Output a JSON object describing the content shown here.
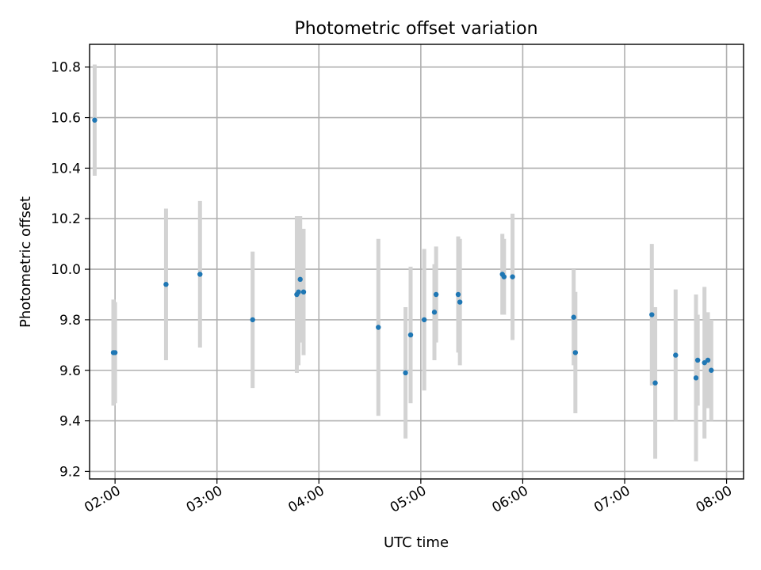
{
  "chart_data": {
    "type": "scatter",
    "title": "Photometric offset variation",
    "xlabel": "UTC time",
    "ylabel": "Photometric offset",
    "xlim": [
      "01:45",
      "08:10"
    ],
    "ylim": [
      9.17,
      10.89
    ],
    "x_ticks": [
      "02:00",
      "03:00",
      "04:00",
      "05:00",
      "06:00",
      "07:00",
      "08:00"
    ],
    "y_ticks": [
      9.2,
      9.4,
      9.6,
      9.8,
      10.0,
      10.2,
      10.4,
      10.6,
      10.8
    ],
    "grid": true,
    "colors": {
      "point": "#1f77b4",
      "errorbar": "#d3d3d3",
      "grid": "#b0b0b0"
    },
    "points": [
      {
        "t": "01:48",
        "y": 10.59,
        "yerr": 0.22
      },
      {
        "t": "01:59",
        "y": 9.67,
        "yerr": 0.21
      },
      {
        "t": "02:00",
        "y": 9.67,
        "yerr": 0.2
      },
      {
        "t": "02:30",
        "y": 9.94,
        "yerr": 0.3
      },
      {
        "t": "02:50",
        "y": 9.98,
        "yerr": 0.29
      },
      {
        "t": "03:21",
        "y": 9.8,
        "yerr": 0.27
      },
      {
        "t": "03:47",
        "y": 9.9,
        "yerr": 0.31
      },
      {
        "t": "03:48",
        "y": 9.91,
        "yerr": 0.29
      },
      {
        "t": "03:49",
        "y": 9.96,
        "yerr": 0.25
      },
      {
        "t": "03:51",
        "y": 9.91,
        "yerr": 0.25
      },
      {
        "t": "04:35",
        "y": 9.77,
        "yerr": 0.35
      },
      {
        "t": "04:51",
        "y": 9.59,
        "yerr": 0.26
      },
      {
        "t": "04:54",
        "y": 9.74,
        "yerr": 0.27
      },
      {
        "t": "05:02",
        "y": 9.8,
        "yerr": 0.28
      },
      {
        "t": "05:08",
        "y": 9.83,
        "yerr": 0.19
      },
      {
        "t": "05:09",
        "y": 9.9,
        "yerr": 0.19
      },
      {
        "t": "05:22",
        "y": 9.9,
        "yerr": 0.23
      },
      {
        "t": "05:23",
        "y": 9.87,
        "yerr": 0.25
      },
      {
        "t": "05:48",
        "y": 9.98,
        "yerr": 0.16
      },
      {
        "t": "05:49",
        "y": 9.97,
        "yerr": 0.15
      },
      {
        "t": "05:54",
        "y": 9.97,
        "yerr": 0.25
      },
      {
        "t": "06:30",
        "y": 9.81,
        "yerr": 0.19
      },
      {
        "t": "06:31",
        "y": 9.67,
        "yerr": 0.24
      },
      {
        "t": "07:16",
        "y": 9.82,
        "yerr": 0.28
      },
      {
        "t": "07:18",
        "y": 9.55,
        "yerr": 0.3
      },
      {
        "t": "07:30",
        "y": 9.66,
        "yerr": 0.26
      },
      {
        "t": "07:42",
        "y": 9.57,
        "yerr": 0.33
      },
      {
        "t": "07:43",
        "y": 9.64,
        "yerr": 0.18
      },
      {
        "t": "07:47",
        "y": 9.63,
        "yerr": 0.3
      },
      {
        "t": "07:49",
        "y": 9.64,
        "yerr": 0.19
      },
      {
        "t": "07:51",
        "y": 9.6,
        "yerr": 0.2
      }
    ]
  }
}
